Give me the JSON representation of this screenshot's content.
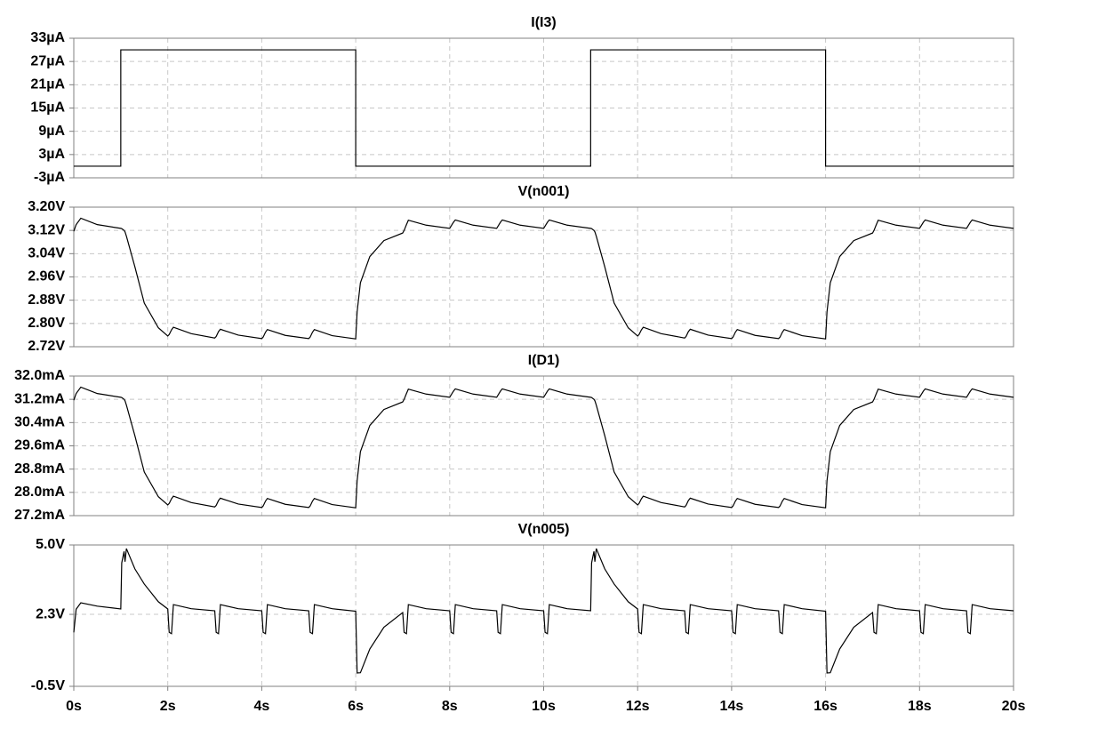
{
  "chart_data": [
    {
      "type": "line",
      "title": "I(I3)",
      "color": "#000000",
      "x": [
        0,
        1,
        1,
        6,
        6,
        11,
        11,
        16,
        16,
        20
      ],
      "values": [
        0,
        0,
        30,
        30,
        0,
        0,
        30,
        30,
        0,
        0
      ],
      "xlim": [
        0,
        20
      ],
      "ylim": [
        -3,
        33
      ],
      "yticks": [
        {
          "value": -3,
          "label": "-3µA"
        },
        {
          "value": 3,
          "label": "3µA"
        },
        {
          "value": 9,
          "label": "9µA"
        },
        {
          "value": 15,
          "label": "15µA"
        },
        {
          "value": 21,
          "label": "21µA"
        },
        {
          "value": 27,
          "label": "27µA"
        },
        {
          "value": 33,
          "label": "33µA"
        }
      ],
      "grid": true
    },
    {
      "type": "line",
      "title": "V(n001)",
      "color": "#000000",
      "x": [
        0,
        0.05,
        0.15,
        0.5,
        1,
        1.02,
        1.07,
        1.09,
        1.12,
        1.3,
        1.5,
        1.8,
        2,
        2.03,
        2.08,
        2.12,
        2.5,
        3,
        3.03,
        3.08,
        3.12,
        3.5,
        4,
        4.03,
        4.08,
        4.12,
        4.5,
        5,
        5.03,
        5.08,
        5.12,
        5.5,
        6,
        6.03,
        6.1,
        6.3,
        6.6,
        7,
        7.03,
        7.08,
        7.12,
        7.5,
        8,
        8.03,
        8.08,
        8.12,
        8.5,
        9,
        9.03,
        9.08,
        9.12,
        9.5,
        10,
        10.03,
        10.08,
        10.12,
        10.5,
        11,
        11.02,
        11.07,
        11.09,
        11.12,
        11.3,
        11.5,
        11.8,
        12,
        12.03,
        12.08,
        12.12,
        12.5,
        13,
        13.03,
        13.08,
        13.12,
        13.5,
        14,
        14.03,
        14.08,
        14.12,
        14.5,
        15,
        15.03,
        15.08,
        15.12,
        15.5,
        16,
        16.03,
        16.1,
        16.3,
        16.6,
        17,
        17.03,
        17.08,
        17.12,
        17.5,
        18,
        18.03,
        18.08,
        18.12,
        18.5,
        19,
        19.03,
        19.08,
        19.12,
        19.5,
        20
      ],
      "values": [
        3.117,
        3.14,
        3.162,
        3.14,
        3.127,
        3.126,
        3.12,
        3.115,
        3.1,
        2.995,
        2.87,
        2.785,
        2.757,
        2.762,
        2.778,
        2.787,
        2.765,
        2.75,
        2.755,
        2.772,
        2.78,
        2.76,
        2.748,
        2.753,
        2.77,
        2.779,
        2.759,
        2.748,
        2.753,
        2.77,
        2.779,
        2.758,
        2.747,
        2.84,
        2.94,
        3.03,
        3.085,
        3.111,
        3.12,
        3.14,
        3.155,
        3.138,
        3.127,
        3.135,
        3.148,
        3.156,
        3.138,
        3.127,
        3.135,
        3.148,
        3.156,
        3.138,
        3.127,
        3.135,
        3.148,
        3.156,
        3.138,
        3.127,
        3.126,
        3.12,
        3.115,
        3.1,
        2.995,
        2.87,
        2.785,
        2.757,
        2.762,
        2.778,
        2.787,
        2.765,
        2.75,
        2.755,
        2.772,
        2.78,
        2.76,
        2.748,
        2.753,
        2.77,
        2.779,
        2.759,
        2.748,
        2.753,
        2.77,
        2.779,
        2.758,
        2.747,
        2.84,
        2.94,
        3.03,
        3.085,
        3.111,
        3.12,
        3.14,
        3.155,
        3.138,
        3.127,
        3.135,
        3.148,
        3.156,
        3.138,
        3.127,
        3.135,
        3.148,
        3.156,
        3.138,
        3.127
      ],
      "xlim": [
        0,
        20
      ],
      "ylim": [
        2.72,
        3.2
      ],
      "yticks": [
        {
          "value": 2.72,
          "label": "2.72V"
        },
        {
          "value": 2.8,
          "label": "2.80V"
        },
        {
          "value": 2.88,
          "label": "2.88V"
        },
        {
          "value": 2.96,
          "label": "2.96V"
        },
        {
          "value": 3.04,
          "label": "3.04V"
        },
        {
          "value": 3.12,
          "label": "3.12V"
        },
        {
          "value": 3.2,
          "label": "3.20V"
        }
      ],
      "grid": true
    },
    {
      "type": "line",
      "title": "I(D1)",
      "color": "#000000",
      "x": [
        0,
        0.05,
        0.15,
        0.5,
        1,
        1.02,
        1.07,
        1.09,
        1.12,
        1.3,
        1.5,
        1.8,
        2,
        2.03,
        2.08,
        2.12,
        2.5,
        3,
        3.03,
        3.08,
        3.12,
        3.5,
        4,
        4.03,
        4.08,
        4.12,
        4.5,
        5,
        5.03,
        5.08,
        5.12,
        5.5,
        6,
        6.03,
        6.1,
        6.3,
        6.6,
        7,
        7.03,
        7.08,
        7.12,
        7.5,
        8,
        8.03,
        8.08,
        8.12,
        8.5,
        9,
        9.03,
        9.08,
        9.12,
        9.5,
        10,
        10.03,
        10.08,
        10.12,
        10.5,
        11,
        11.02,
        11.07,
        11.09,
        11.12,
        11.3,
        11.5,
        11.8,
        12,
        12.03,
        12.08,
        12.12,
        12.5,
        13,
        13.03,
        13.08,
        13.12,
        13.5,
        14,
        14.03,
        14.08,
        14.12,
        14.5,
        15,
        15.03,
        15.08,
        15.12,
        15.5,
        16,
        16.03,
        16.1,
        16.3,
        16.6,
        17,
        17.03,
        17.08,
        17.12,
        17.5,
        18,
        18.03,
        18.08,
        18.12,
        18.5,
        19,
        19.03,
        19.08,
        19.12,
        19.5,
        20
      ],
      "values": [
        31.17,
        31.4,
        31.62,
        31.4,
        31.27,
        31.26,
        31.2,
        31.15,
        31.0,
        29.95,
        28.7,
        27.85,
        27.57,
        27.62,
        27.78,
        27.87,
        27.65,
        27.5,
        27.55,
        27.72,
        27.8,
        27.6,
        27.48,
        27.53,
        27.7,
        27.79,
        27.59,
        27.48,
        27.53,
        27.7,
        27.79,
        27.58,
        27.47,
        28.4,
        29.4,
        30.3,
        30.85,
        31.11,
        31.2,
        31.4,
        31.55,
        31.38,
        31.27,
        31.35,
        31.48,
        31.56,
        31.38,
        31.27,
        31.35,
        31.48,
        31.56,
        31.38,
        31.27,
        31.35,
        31.48,
        31.56,
        31.38,
        31.27,
        31.26,
        31.2,
        31.15,
        31.0,
        29.95,
        28.7,
        27.85,
        27.57,
        27.62,
        27.78,
        27.87,
        27.65,
        27.5,
        27.55,
        27.72,
        27.8,
        27.6,
        27.48,
        27.53,
        27.7,
        27.79,
        27.59,
        27.48,
        27.53,
        27.7,
        27.79,
        27.58,
        27.47,
        28.4,
        29.4,
        30.3,
        30.85,
        31.11,
        31.2,
        31.4,
        31.55,
        31.38,
        31.27,
        31.35,
        31.48,
        31.56,
        31.38,
        31.27,
        31.35,
        31.48,
        31.56,
        31.38,
        31.27
      ],
      "xlim": [
        0,
        20
      ],
      "ylim": [
        27.2,
        32.0
      ],
      "yticks": [
        {
          "value": 27.2,
          "label": "27.2mA"
        },
        {
          "value": 28.0,
          "label": "28.0mA"
        },
        {
          "value": 28.8,
          "label": "28.8mA"
        },
        {
          "value": 29.6,
          "label": "29.6mA"
        },
        {
          "value": 30.4,
          "label": "30.4mA"
        },
        {
          "value": 31.2,
          "label": "31.2mA"
        },
        {
          "value": 32.0,
          "label": "32.0mA"
        }
      ],
      "grid": true
    },
    {
      "type": "line",
      "title": "V(n005)",
      "color": "#000000",
      "x": [
        0,
        0.05,
        0.15,
        0.5,
        1,
        1.02,
        1.07,
        1.09,
        1.12,
        1.3,
        1.5,
        1.8,
        2,
        2.03,
        2.08,
        2.12,
        2.5,
        3,
        3.03,
        3.08,
        3.12,
        3.5,
        4,
        4.03,
        4.08,
        4.12,
        4.5,
        5,
        5.03,
        5.08,
        5.12,
        5.5,
        6,
        6.03,
        6.1,
        6.3,
        6.6,
        7,
        7.03,
        7.08,
        7.12,
        7.5,
        8,
        8.03,
        8.08,
        8.12,
        8.5,
        9,
        9.03,
        9.08,
        9.12,
        9.5,
        10,
        10.03,
        10.08,
        10.12,
        10.5,
        11,
        11.02,
        11.07,
        11.09,
        11.12,
        11.3,
        11.5,
        11.8,
        12,
        12.03,
        12.08,
        12.12,
        12.5,
        13,
        13.03,
        13.08,
        13.12,
        13.5,
        14,
        14.03,
        14.08,
        14.12,
        14.5,
        15,
        15.03,
        15.08,
        15.12,
        15.5,
        16,
        16.03,
        16.1,
        16.3,
        16.6,
        17,
        17.03,
        17.08,
        17.12,
        17.5,
        18,
        18.03,
        18.08,
        18.12,
        18.5,
        19,
        19.03,
        19.08,
        19.12,
        19.5,
        20
      ],
      "values": [
        1.6,
        2.5,
        2.75,
        2.62,
        2.51,
        4.3,
        4.75,
        4.35,
        4.86,
        4.07,
        3.48,
        2.79,
        2.51,
        1.6,
        1.55,
        2.68,
        2.52,
        2.44,
        1.6,
        1.55,
        2.68,
        2.52,
        2.44,
        1.6,
        1.55,
        2.68,
        2.52,
        2.44,
        1.6,
        1.55,
        2.68,
        2.52,
        2.42,
        0.02,
        0.03,
        0.95,
        1.8,
        2.37,
        1.6,
        1.55,
        2.68,
        2.52,
        2.44,
        1.6,
        1.55,
        2.68,
        2.52,
        2.44,
        1.6,
        1.55,
        2.68,
        2.52,
        2.44,
        1.6,
        1.55,
        2.68,
        2.52,
        2.44,
        4.3,
        4.75,
        4.35,
        4.86,
        4.07,
        3.48,
        2.79,
        2.51,
        1.6,
        1.55,
        2.68,
        2.52,
        2.44,
        1.6,
        1.55,
        2.68,
        2.52,
        2.44,
        1.6,
        1.55,
        2.68,
        2.52,
        2.44,
        1.6,
        1.55,
        2.68,
        2.52,
        2.42,
        0.02,
        0.03,
        0.95,
        1.8,
        2.37,
        1.6,
        1.55,
        2.68,
        2.52,
        2.44,
        1.6,
        1.55,
        2.68,
        2.52,
        2.44,
        1.6,
        1.55,
        2.68,
        2.52,
        2.44
      ],
      "xlim": [
        0,
        20
      ],
      "ylim": [
        -0.5,
        5.0
      ],
      "yticks": [
        {
          "value": -0.5,
          "label": "-0.5V"
        },
        {
          "value": 2.3,
          "label": "2.3V"
        },
        {
          "value": 5.0,
          "label": "5.0V"
        }
      ],
      "xticks": [
        {
          "value": 0,
          "label": "0s"
        },
        {
          "value": 2,
          "label": "2s"
        },
        {
          "value": 4,
          "label": "4s"
        },
        {
          "value": 6,
          "label": "6s"
        },
        {
          "value": 8,
          "label": "8s"
        },
        {
          "value": 10,
          "label": "10s"
        },
        {
          "value": 12,
          "label": "12s"
        },
        {
          "value": 14,
          "label": "14s"
        },
        {
          "value": 16,
          "label": "16s"
        },
        {
          "value": 18,
          "label": "18s"
        },
        {
          "value": 20,
          "label": "20s"
        }
      ],
      "grid": true
    }
  ]
}
